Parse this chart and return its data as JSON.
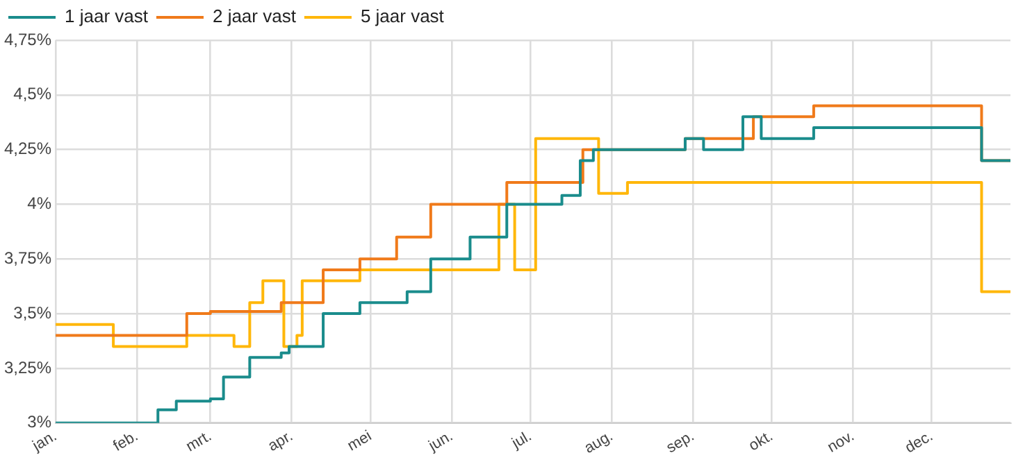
{
  "chart_data": {
    "type": "step",
    "legend": "top left",
    "grid": true,
    "marker": "none",
    "xlim": [
      "--01-01",
      "--12-31"
    ],
    "xticks": [
      {
        "value": "--01-01",
        "label": "jan."
      },
      {
        "value": "--02-01",
        "label": "feb."
      },
      {
        "value": "--03-01",
        "label": "mrt."
      },
      {
        "value": "--04-01",
        "label": "apr."
      },
      {
        "value": "--05-01",
        "label": "mei"
      },
      {
        "value": "--06-01",
        "label": "jun."
      },
      {
        "value": "--07-01",
        "label": "jul."
      },
      {
        "value": "--08-01",
        "label": "aug."
      },
      {
        "value": "--09-01",
        "label": "sep."
      },
      {
        "value": "--10-01",
        "label": "okt."
      },
      {
        "value": "--11-01",
        "label": "nov."
      },
      {
        "value": "--12-01",
        "label": "dec."
      }
    ],
    "ylim": [
      3,
      4.75
    ],
    "yticks": [
      {
        "value": 3,
        "label": "3%"
      },
      {
        "value": 3.25,
        "label": "3,25%"
      },
      {
        "value": 3.5,
        "label": "3,5%"
      },
      {
        "value": 3.75,
        "label": "3,75%"
      },
      {
        "value": 4,
        "label": "4%"
      },
      {
        "value": 4.25,
        "label": "4,25%"
      },
      {
        "value": 4.5,
        "label": "4,5%"
      },
      {
        "value": 4.75,
        "label": "4,75%"
      }
    ],
    "series": [
      {
        "name": "1 jaar vast",
        "color": "#1a8c8c",
        "x": [
          "--01-01",
          "--02-09",
          "--02-16",
          "--03-01",
          "--03-06",
          "--03-16",
          "--03-28",
          "--03-31",
          "--04-13",
          "--04-27",
          "--05-15",
          "--05-24",
          "--06-08",
          "--06-22",
          "--07-13",
          "--07-20",
          "--07-25",
          "--08-29",
          "--09-05",
          "--09-20",
          "--09-27",
          "--10-17",
          "--12-20",
          "--12-31"
        ],
        "values": [
          3.0,
          3.06,
          3.1,
          3.11,
          3.21,
          3.3,
          3.32,
          3.35,
          3.5,
          3.55,
          3.6,
          3.75,
          3.85,
          4.0,
          4.04,
          4.2,
          4.25,
          4.3,
          4.25,
          4.4,
          4.3,
          4.35,
          4.2,
          4.2
        ]
      },
      {
        "name": "2 jaar vast",
        "color": "#f07a1a",
        "x": [
          "--01-01",
          "--02-20",
          "--03-01",
          "--03-28",
          "--04-13",
          "--04-27",
          "--05-11",
          "--05-24",
          "--06-22",
          "--07-21",
          "--08-29",
          "--09-24",
          "--10-17",
          "--12-20",
          "--12-31"
        ],
        "values": [
          3.4,
          3.5,
          3.51,
          3.55,
          3.7,
          3.75,
          3.85,
          4.0,
          4.1,
          4.25,
          4.3,
          4.4,
          4.45,
          4.2,
          4.2
        ]
      },
      {
        "name": "5 jaar vast",
        "color": "#ffb70a",
        "x": [
          "--01-01",
          "--01-23",
          "--02-20",
          "--03-10",
          "--03-16",
          "--03-21",
          "--03-29",
          "--04-03",
          "--04-05",
          "--04-27",
          "--06-19",
          "--06-25",
          "--07-03",
          "--07-27",
          "--08-07",
          "--12-20",
          "--12-31"
        ],
        "values": [
          3.45,
          3.35,
          3.4,
          3.35,
          3.55,
          3.65,
          3.35,
          3.4,
          3.65,
          3.7,
          4.0,
          3.7,
          4.3,
          4.05,
          4.1,
          3.6,
          3.6
        ]
      }
    ]
  }
}
